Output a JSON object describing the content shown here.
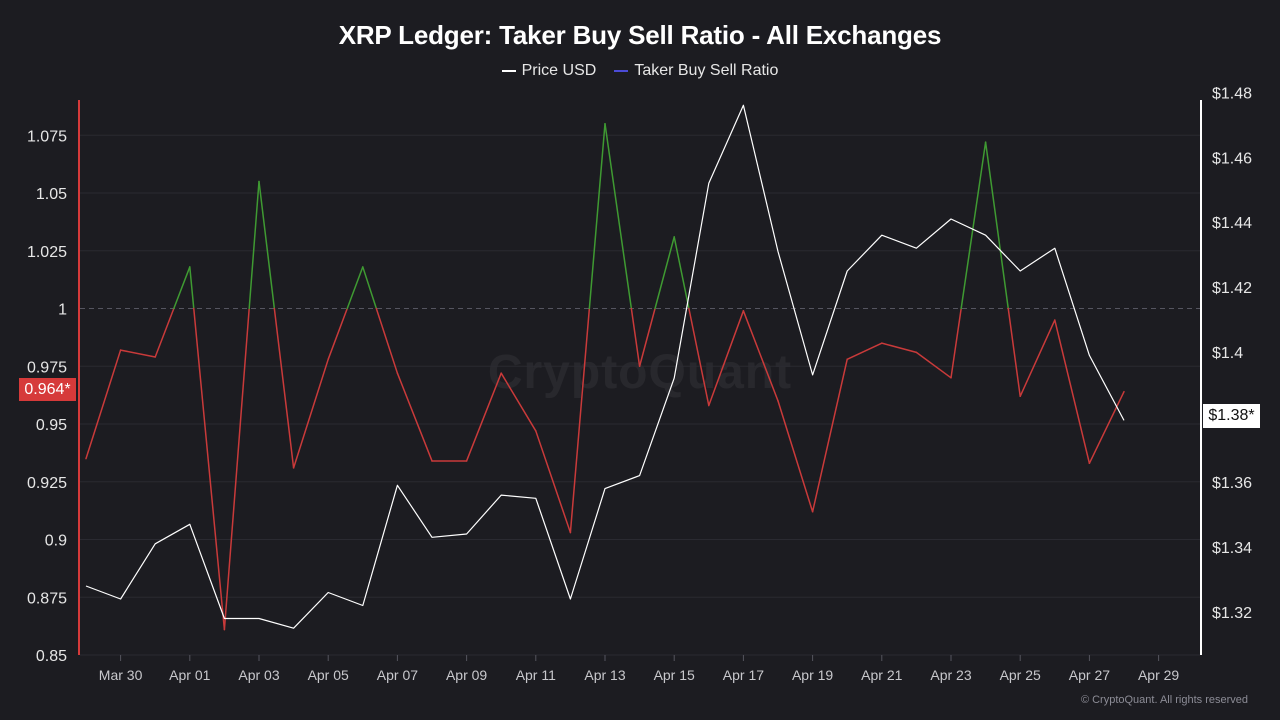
{
  "title": "XRP Ledger: Taker Buy Sell Ratio - All Exchanges",
  "legend": [
    {
      "label": "Price USD",
      "color": "#ffffff"
    },
    {
      "label": "Taker Buy Sell Ratio",
      "color": "#4b4bd6"
    }
  ],
  "watermark": "CryptoQuant",
  "copyright": "© CryptoQuant. All rights reserved",
  "badges": {
    "ratio_current": "0.964*",
    "price_current": "$1.38*"
  },
  "colors": {
    "above": "#3f9a32",
    "below": "#c93a3a",
    "price": "#ffffff",
    "grid": "#2a2a31",
    "ref": "#555560"
  },
  "chart_data": {
    "type": "line",
    "x_tick_labels": [
      "Mar 30",
      "Apr 01",
      "Apr 03",
      "Apr 05",
      "Apr 07",
      "Apr 09",
      "Apr 11",
      "Apr 13",
      "Apr 15",
      "Apr 17",
      "Apr 19",
      "Apr 21",
      "Apr 23",
      "Apr 25",
      "Apr 27",
      "Apr 29"
    ],
    "x": [
      "Mar 29",
      "Mar 30",
      "Mar 31",
      "Apr 01",
      "Apr 02",
      "Apr 03",
      "Apr 04",
      "Apr 05",
      "Apr 06",
      "Apr 07",
      "Apr 08",
      "Apr 09",
      "Apr 10",
      "Apr 11",
      "Apr 12",
      "Apr 13",
      "Apr 14",
      "Apr 15",
      "Apr 16",
      "Apr 17",
      "Apr 18",
      "Apr 19",
      "Apr 20",
      "Apr 21",
      "Apr 22",
      "Apr 23",
      "Apr 24",
      "Apr 25",
      "Apr 26",
      "Apr 27",
      "Apr 28"
    ],
    "y_left": {
      "ticks": [
        "1.075",
        "1.05",
        "1.025",
        "1",
        "0.975",
        "0.95",
        "0.925",
        "0.9",
        "0.875",
        "0.85"
      ],
      "ylim": [
        0.85,
        1.08
      ],
      "reference": 1
    },
    "y_right": {
      "ticks": [
        "$1.48",
        "$1.46",
        "$1.44",
        "$1.42",
        "$1.4",
        "$1.38",
        "$1.36",
        "$1.34",
        "$1.32"
      ],
      "ylim": [
        1.3,
        1.485
      ]
    },
    "series": [
      {
        "name": "Taker Buy Sell Ratio",
        "axis": "left",
        "values": [
          0.935,
          0.982,
          0.979,
          1.018,
          0.861,
          1.055,
          0.931,
          0.978,
          1.018,
          0.972,
          0.934,
          0.934,
          0.972,
          0.947,
          0.903,
          1.08,
          0.975,
          1.031,
          0.958,
          0.999,
          0.96,
          0.912,
          0.978,
          0.985,
          0.981,
          0.97,
          1.072,
          0.962,
          0.995,
          0.933,
          0.964
        ]
      },
      {
        "name": "Price USD",
        "axis": "right",
        "values": [
          1.328,
          1.324,
          1.341,
          1.347,
          1.318,
          1.318,
          1.315,
          1.326,
          1.322,
          1.359,
          1.343,
          1.344,
          1.356,
          1.355,
          1.324,
          1.358,
          1.362,
          1.392,
          1.452,
          1.476,
          1.431,
          1.393,
          1.425,
          1.436,
          1.432,
          1.441,
          1.436,
          1.425,
          1.432,
          1.399,
          1.379
        ]
      }
    ]
  }
}
